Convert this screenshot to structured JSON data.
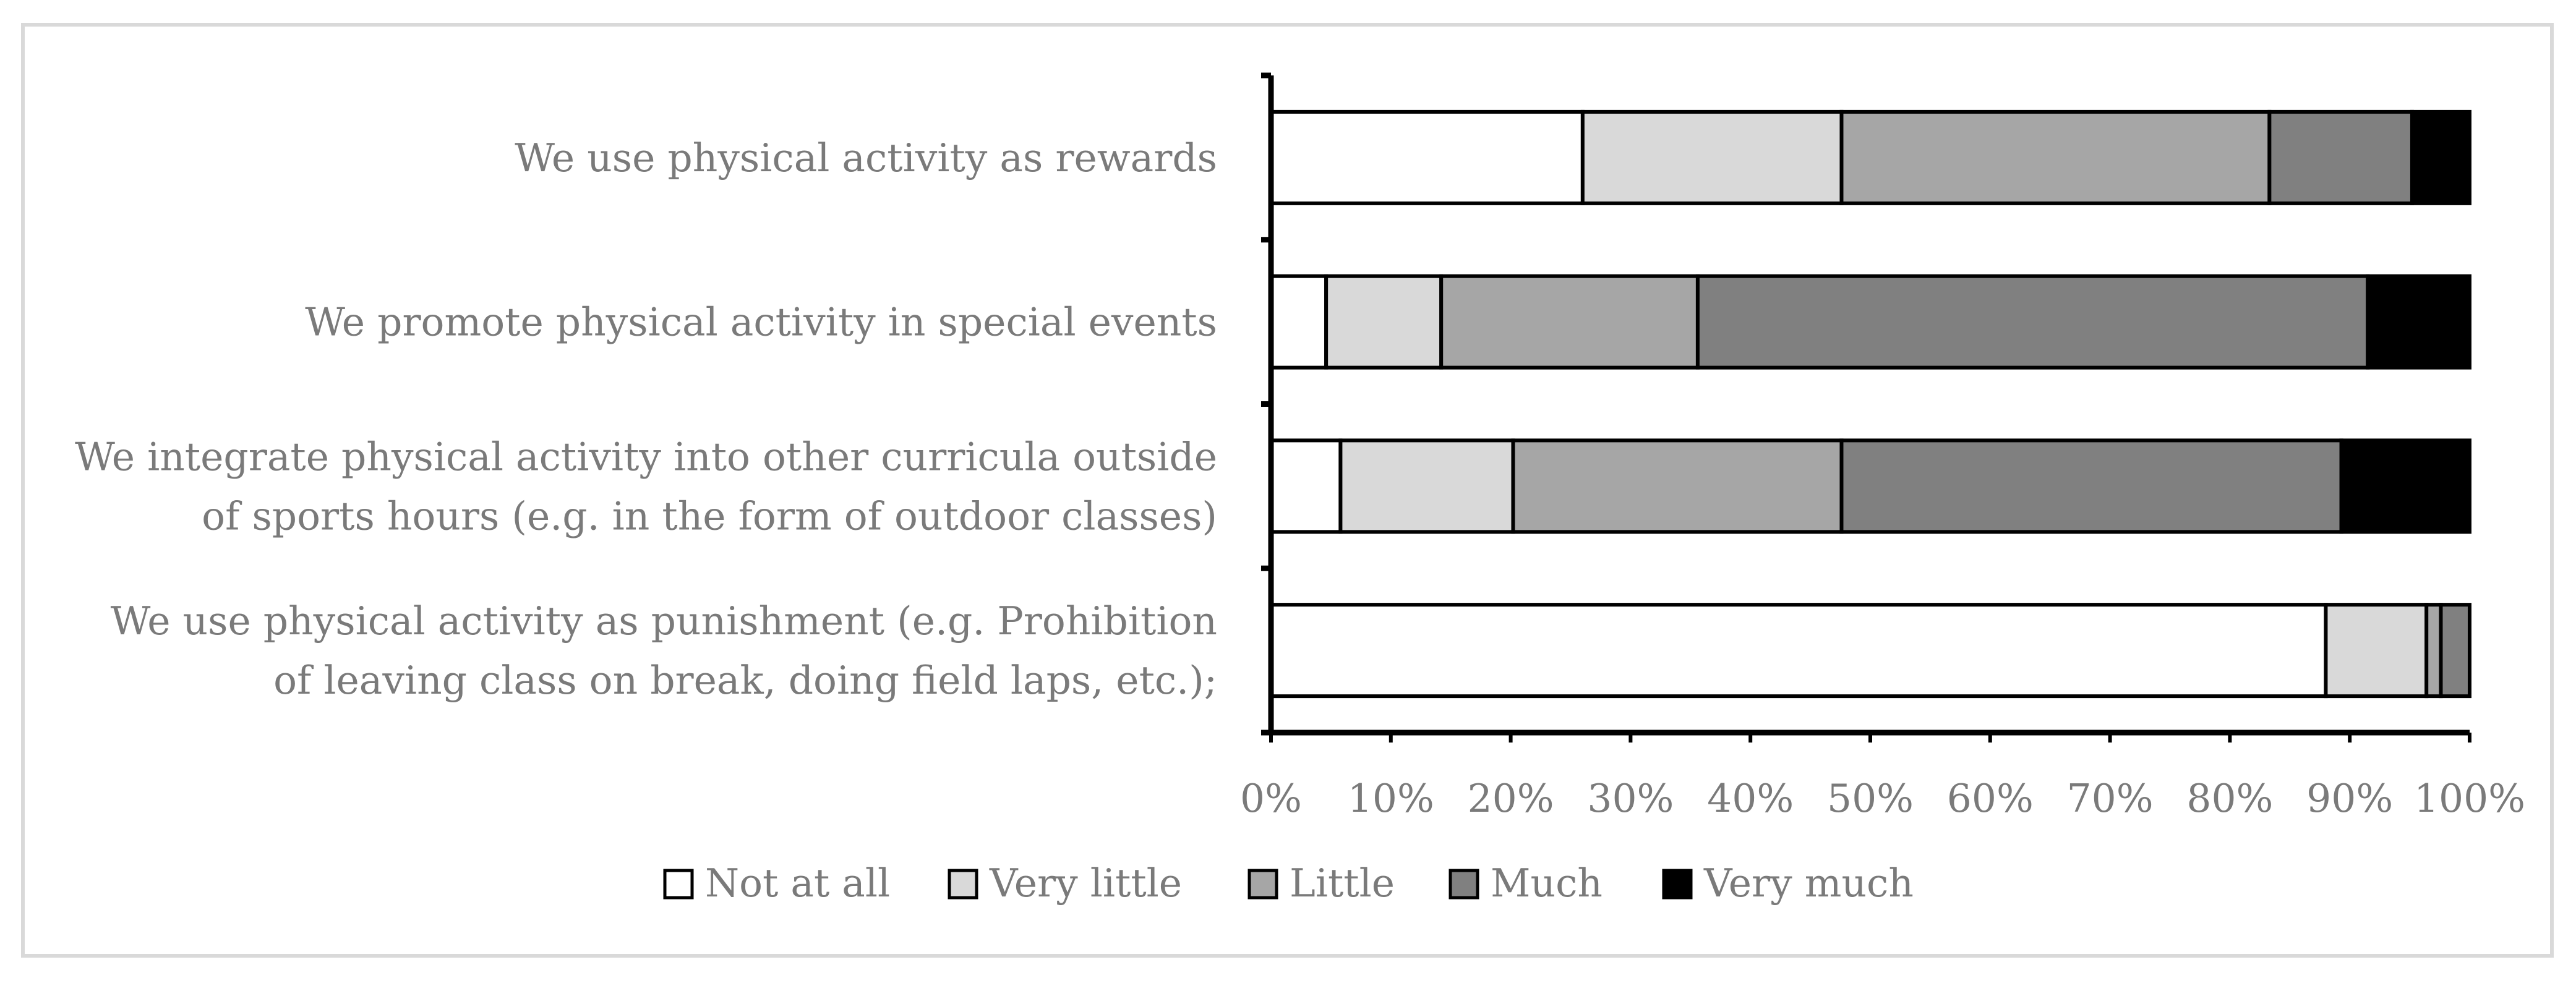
{
  "chart_data": {
    "type": "bar",
    "orientation": "horizontal",
    "stacked": "percent",
    "title": "",
    "xlabel": "",
    "ylabel": "",
    "xlim": [
      0,
      100
    ],
    "grid": false,
    "legend_position": "bottom",
    "x_ticks": [
      "0%",
      "10%",
      "20%",
      "30%",
      "40%",
      "50%",
      "60%",
      "70%",
      "80%",
      "90%",
      "100%"
    ],
    "categories": [
      [
        "We use physical activity as rewards"
      ],
      [
        "We promote physical activity in special events"
      ],
      [
        "We integrate physical activity into other curricula outside",
        "of sports hours (e.g. in the form of outdoor classes)"
      ],
      [
        "We use physical activity as punishment (e.g. Prohibition",
        "of leaving class on break, doing field laps, etc.);"
      ]
    ],
    "series": [
      {
        "name": "Not at all",
        "color": "#ffffff",
        "values": [
          26.0,
          4.6,
          5.8,
          88.0
        ]
      },
      {
        "name": "Very little",
        "color": "#d9d9d9",
        "values": [
          21.6,
          9.6,
          14.4,
          8.4
        ]
      },
      {
        "name": "Little",
        "color": "#a6a6a6",
        "values": [
          35.7,
          21.4,
          27.4,
          1.2
        ]
      },
      {
        "name": "Much",
        "color": "#808080",
        "values": [
          11.9,
          55.9,
          41.7,
          2.4
        ]
      },
      {
        "name": "Very much",
        "color": "#000000",
        "values": [
          4.8,
          8.5,
          10.7,
          0.0
        ]
      }
    ]
  }
}
